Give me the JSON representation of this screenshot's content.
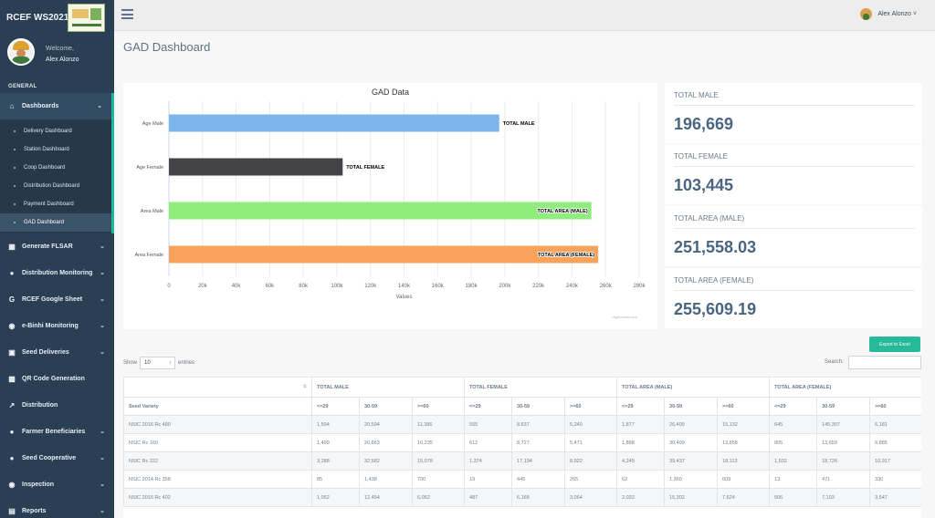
{
  "app": {
    "brand": "RCEF WS2021",
    "welcome": "Welcome,",
    "user_name": "Alex Alonzo",
    "section_label": "GENERAL"
  },
  "sidebar": {
    "menu": [
      {
        "label": "Dashboards",
        "icon": "home-icon"
      },
      {
        "label": "Generate FLSAR",
        "icon": "table-icon"
      },
      {
        "label": "Distribution Monitoring",
        "icon": "globe-icon"
      },
      {
        "label": "RCEF Google Sheet",
        "icon": "google-icon"
      },
      {
        "label": "e-Binhi Monitoring",
        "icon": "binoculars-icon"
      },
      {
        "label": "Seed Deliveries",
        "icon": "truck-icon"
      },
      {
        "label": "QR Code Generation",
        "icon": "qrcode-icon"
      },
      {
        "label": "Distribution",
        "icon": "share-icon"
      },
      {
        "label": "Farmer Beneficiaries",
        "icon": "users-icon"
      },
      {
        "label": "Seed Cooperative",
        "icon": "group-icon"
      },
      {
        "label": "Inspection",
        "icon": "eye-icon"
      },
      {
        "label": "Reports",
        "icon": "file-icon"
      }
    ],
    "submenu": [
      "Delivery Dashboard",
      "Station Dashboard",
      "Coop Dashboard",
      "Distribution Dashboard",
      "Payment Dashboard",
      "GAD Dashboard"
    ]
  },
  "topbar": {
    "user_name": "Alex Alonzo",
    "user_caret": "˅"
  },
  "page": {
    "title": "GAD Dashboard"
  },
  "chart_data": {
    "type": "bar",
    "orientation": "horizontal",
    "title": "GAD Data",
    "categories": [
      "Age Male",
      "Age Female",
      "Area Male",
      "Area Female"
    ],
    "values": [
      196669,
      103445,
      251558.03,
      255609.19
    ],
    "data_labels": [
      "TOTAL MALE",
      "TOTAL FEMALE",
      "TOTAL AREA (MALE)",
      "TOTAL AREA (FEMALE)"
    ],
    "colors": [
      "#7cb5ec",
      "#434348",
      "#90ed7d",
      "#f7a35c"
    ],
    "xlabel": "Values",
    "ylabel": "",
    "xlim": [
      0,
      280000
    ],
    "ticks": [
      "0",
      "20k",
      "40k",
      "60k",
      "80k",
      "100k",
      "120k",
      "140k",
      "160k",
      "180k",
      "200k",
      "220k",
      "240k",
      "260k",
      "280k"
    ],
    "credit": "Highcharts.com",
    "grid": true
  },
  "stats": [
    {
      "label": "TOTAL MALE",
      "value": "196,669"
    },
    {
      "label": "TOTAL FEMALE",
      "value": "103,445"
    },
    {
      "label": "TOTAL AREA (MALE)",
      "value": "251,558.03"
    },
    {
      "label": "TOTAL AREA (FEMALE)",
      "value": "255,609.19"
    }
  ],
  "controls": {
    "export_label": "Export to Excel",
    "show_label": "Show",
    "entries_value": "10",
    "entries_label": "entries",
    "search_label": "Search:"
  },
  "table": {
    "group_headers": [
      "TOTAL MALE",
      "TOTAL FEMALE",
      "TOTAL AREA (MALE)",
      "TOTAL AREA (FEMALE)"
    ],
    "first_col": "Seed Variety",
    "sub_headers": [
      "<=29",
      "30-59",
      ">=60",
      "<=29",
      "30-59",
      ">=60",
      "<=29",
      "30-59",
      ">=60",
      "<=29",
      "30-59",
      ">=60"
    ],
    "rows": [
      [
        "NSIC 2016 Rc 480",
        "1,594",
        "20,594",
        "11,386",
        "555",
        "8,637",
        "5,240",
        "1,877",
        "26,409",
        "15,132",
        "645",
        "145,307",
        "6,181"
      ],
      [
        "NSIC Rc 160",
        "1,499",
        "20,863",
        "10,235",
        "612",
        "8,727",
        "5,471",
        "1,888",
        "30,499",
        "13,858",
        "805",
        "13,659",
        "6,885"
      ],
      [
        "NSIC Rc 222",
        "3,288",
        "32,582",
        "15,078",
        "1,374",
        "17,194",
        "8,922",
        "4,245",
        "39,437",
        "18,113",
        "1,502",
        "18,726",
        "10,917"
      ],
      [
        "NSIC 2014 Rc 358",
        "85",
        "1,438",
        "700",
        "19",
        "445",
        "265",
        "62",
        "1,360",
        "609",
        "13",
        "471",
        "330"
      ],
      [
        "NSIC 2015 Rc 402",
        "1,052",
        "12,454",
        "6,052",
        "487",
        "6,168",
        "3,064",
        "2,033",
        "15,302",
        "7,624",
        "506",
        "7,103",
        "3,547"
      ]
    ]
  }
}
